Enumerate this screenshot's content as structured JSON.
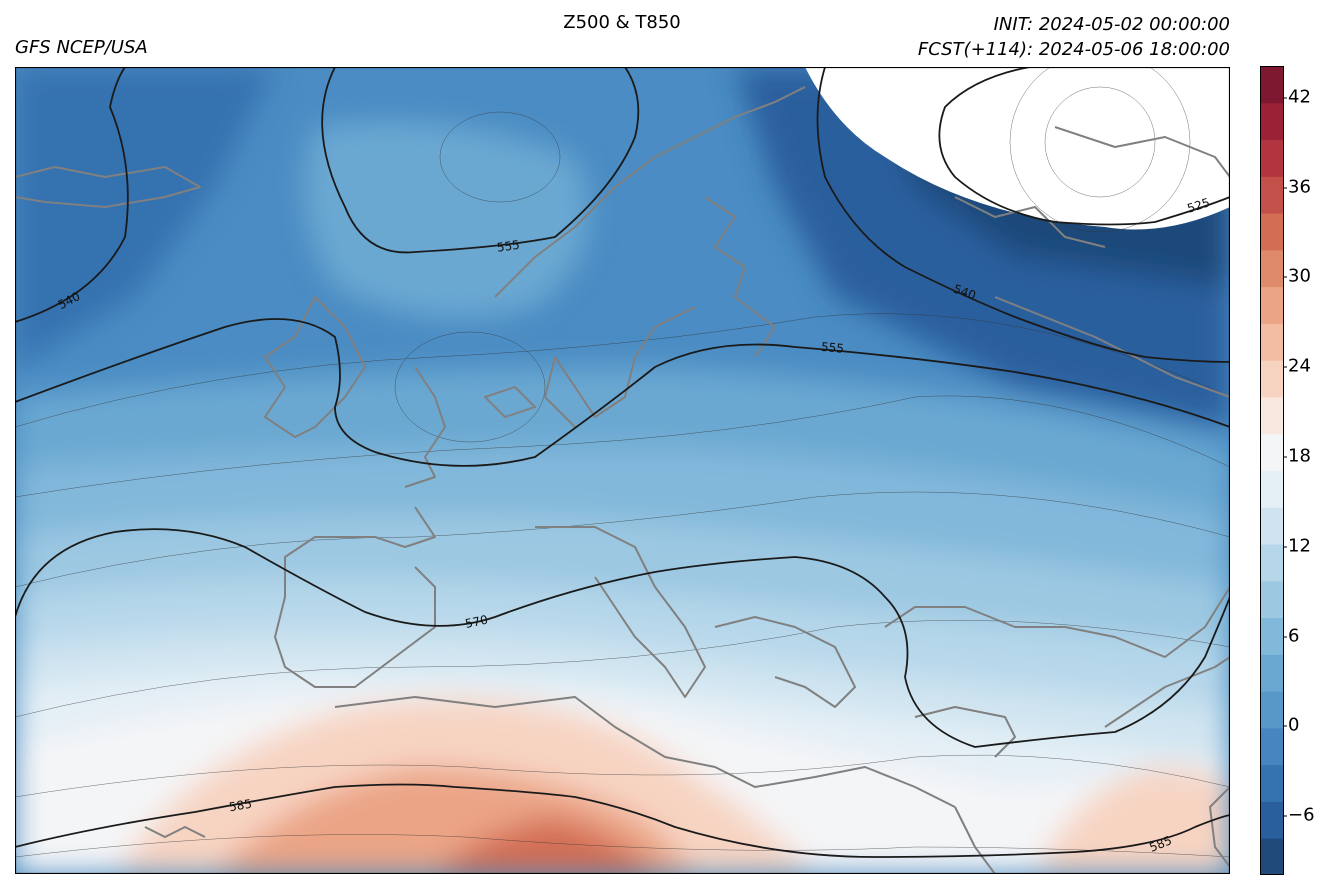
{
  "header": {
    "center_title": "Z500 & T850",
    "left_title": "GFS NCEP/USA",
    "init_line": "INIT: 2024-05-02 00:00:00",
    "fcst_line": "FCST(+114): 2024-05-06 18:00:00"
  },
  "map": {
    "z500_contour_labels": [
      "540",
      "555",
      "555",
      "540",
      "525",
      "570",
      "585",
      "585"
    ],
    "coastline_color": "#808080",
    "contour_color": "#1a1a1a"
  },
  "colorbar": {
    "tick_labels": [
      "42",
      "36",
      "30",
      "24",
      "18",
      "12",
      "6",
      "0",
      "−6"
    ],
    "colors_cold_to_warm": [
      "#1f4a7a",
      "#2a5f9e",
      "#3572b0",
      "#4685c0",
      "#5898c9",
      "#6aa8d2",
      "#82b8da",
      "#9cc8e2",
      "#b6d7ea",
      "#cfe4f0",
      "#e4eff6",
      "#f4f5f7",
      "#f9e8df",
      "#f7d4c2",
      "#f2bda3",
      "#eba486",
      "#e08a6c",
      "#d36e55",
      "#c4504a",
      "#b2343e",
      "#9a2136",
      "#7d1830"
    ]
  }
}
